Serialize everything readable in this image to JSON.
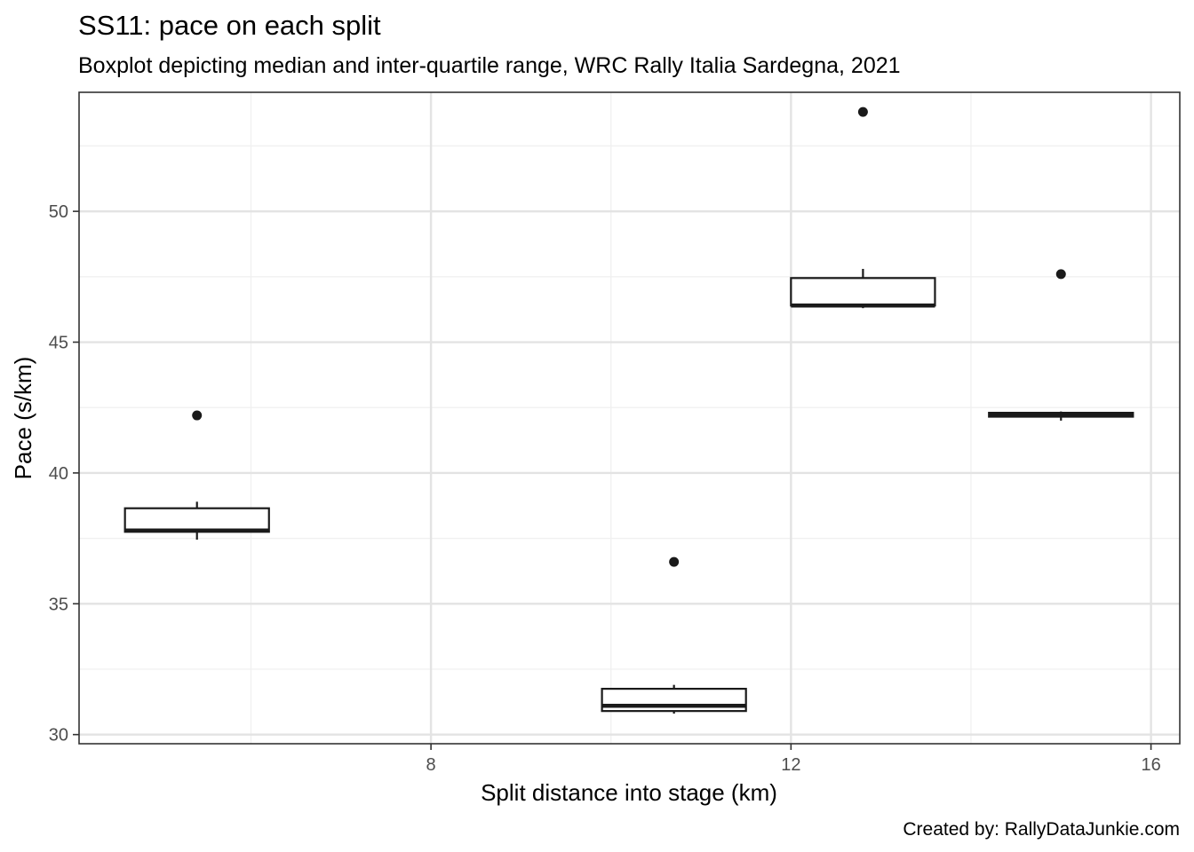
{
  "chart_data": {
    "type": "boxplot",
    "title": "SS11: pace on each split",
    "subtitle": "Boxplot depicting median and inter-quartile range, WRC Rally Italia Sardegna, 2021",
    "xlabel": "Split distance into stage (km)",
    "ylabel": "Pace (s/km)",
    "caption": "Created by: RallyDataJunkie.com",
    "xlim": [
      4.09,
      16.32
    ],
    "ylim": [
      29.65,
      54.55
    ],
    "x_ticks": [
      8,
      12,
      16
    ],
    "x_minor_ticks": [
      6,
      10,
      14
    ],
    "y_ticks": [
      30,
      35,
      40,
      45,
      50
    ],
    "y_minor_ticks": [
      32.5,
      37.5,
      42.5,
      47.5,
      52.5
    ],
    "grid": true,
    "theme": "bw",
    "boxes": [
      {
        "x": 5.4,
        "xmin": 4.6,
        "xmax": 6.2,
        "whisker_low": 37.45,
        "q1": 37.75,
        "median": 37.8,
        "q3": 38.65,
        "whisker_high": 38.9,
        "outliers": [
          42.2
        ]
      },
      {
        "x": 10.7,
        "xmin": 9.9,
        "xmax": 11.5,
        "whisker_low": 30.8,
        "q1": 30.9,
        "median": 31.1,
        "q3": 31.75,
        "whisker_high": 31.9,
        "outliers": [
          36.6
        ]
      },
      {
        "x": 12.8,
        "xmin": 12.0,
        "xmax": 13.6,
        "whisker_low": 46.3,
        "q1": 46.4,
        "median": 46.4,
        "q3": 47.45,
        "whisker_high": 47.8,
        "outliers": [
          53.8
        ]
      },
      {
        "x": 15.0,
        "xmin": 14.2,
        "xmax": 15.8,
        "whisker_low": 42.0,
        "q1": 42.15,
        "median": 42.2,
        "q3": 42.3,
        "whisker_high": 42.35,
        "outliers": [
          47.6
        ]
      }
    ],
    "colors": {
      "box_line": "#1a1a1a",
      "outlier": "#1a1a1a",
      "grid_major": "#e3e3e3",
      "grid_minor": "#f0f0f0",
      "panel_border": "#333333",
      "tick_text": "#4d4d4d"
    }
  }
}
